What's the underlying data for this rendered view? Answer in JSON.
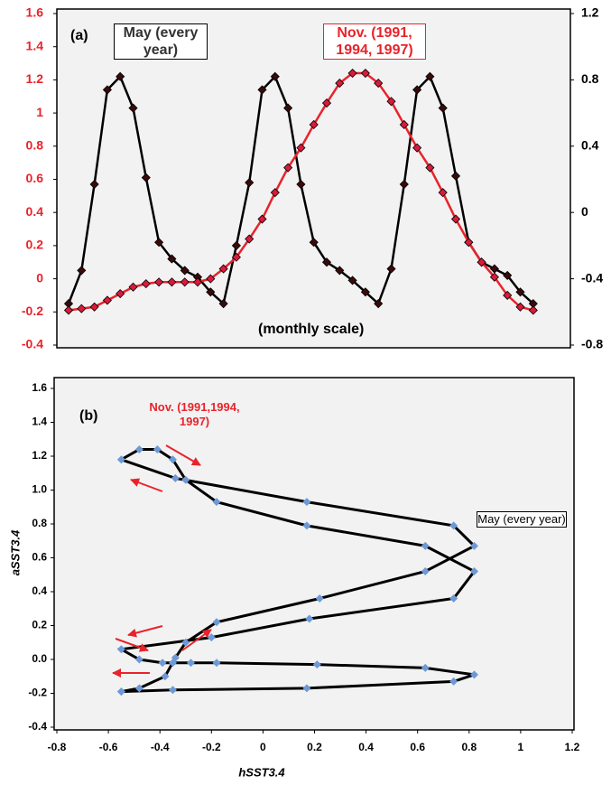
{
  "chart_data": [
    {
      "type": "line",
      "annotations": [
        "(a)",
        "May (every year)",
        "Nov. (1991, 1994, 1997)",
        "(monthly scale)"
      ],
      "ylim": [
        -0.4,
        1.6
      ],
      "yticks": [
        1.6,
        1.4,
        1.2,
        1,
        0.8,
        0.6,
        0.4,
        0.2,
        0,
        -0.2,
        -0.4
      ],
      "y2lim": [
        -0.8,
        1.2
      ],
      "y2ticks": [
        1.2,
        0.8,
        0.4,
        0,
        -0.4,
        -0.8
      ],
      "series": [
        {
          "color": "#000000",
          "marker_color": "#3a0a0a",
          "axis": "y2",
          "values": [
            -0.55,
            -0.35,
            0.17,
            0.74,
            0.82,
            0.63,
            0.21,
            -0.18,
            -0.28,
            -0.35,
            -0.39,
            -0.48,
            -0.55,
            -0.2,
            0.18,
            0.74,
            0.82,
            0.63,
            0.17,
            -0.18,
            -0.3,
            -0.35,
            -0.41,
            -0.48,
            -0.55,
            -0.34,
            0.17,
            0.74,
            0.82,
            0.63,
            0.22,
            -0.18,
            -0.3,
            -0.34,
            -0.38,
            -0.48,
            -0.55
          ]
        },
        {
          "color": "#e8232b",
          "marker_color": "#d81b3c",
          "axis": "y",
          "values": [
            -0.19,
            -0.18,
            -0.17,
            -0.13,
            -0.09,
            -0.05,
            -0.03,
            -0.02,
            -0.02,
            -0.02,
            -0.02,
            0.0,
            0.06,
            0.13,
            0.24,
            0.36,
            0.52,
            0.67,
            0.79,
            0.93,
            1.06,
            1.18,
            1.24,
            1.24,
            1.18,
            1.07,
            0.93,
            0.79,
            0.67,
            0.52,
            0.36,
            0.22,
            0.1,
            0.01,
            -0.1,
            -0.17,
            -0.19
          ]
        }
      ]
    },
    {
      "type": "scatter",
      "x_label": "hSST3.4",
      "y_label": "aSST3.4",
      "annotations": [
        "(b)",
        "Nov. (1991,1994, 1997)",
        "May (every year)"
      ],
      "xlim": [
        -0.8,
        1.2
      ],
      "xticks": [
        -0.8,
        -0.6,
        -0.4,
        -0.2,
        0,
        0.2,
        0.4,
        0.6,
        0.8,
        1,
        1.2
      ],
      "ylim": [
        -0.4,
        1.6
      ],
      "yticks": [
        1.6,
        1.4,
        1.2,
        {
          "value": 1,
          "label": "1.0"
        },
        0.8,
        0.6,
        0.4,
        0.2,
        {
          "value": 0,
          "label": "0.0"
        },
        -0.2,
        -0.4
      ],
      "line_color": "#000000",
      "marker_color": "#6d9ad6",
      "x": [
        -0.55,
        -0.35,
        0.17,
        0.74,
        0.82,
        0.63,
        0.21,
        -0.18,
        -0.28,
        -0.35,
        -0.39,
        -0.48,
        -0.55,
        -0.2,
        0.18,
        0.74,
        0.82,
        0.63,
        0.17,
        -0.18,
        -0.3,
        -0.35,
        -0.41,
        -0.48,
        -0.55,
        -0.34,
        0.17,
        0.74,
        0.82,
        0.63,
        0.22,
        -0.18,
        -0.3,
        -0.34,
        -0.38,
        -0.48,
        -0.55
      ],
      "values": [
        -0.19,
        -0.18,
        -0.17,
        -0.13,
        -0.09,
        -0.05,
        -0.03,
        -0.02,
        -0.02,
        -0.02,
        -0.02,
        0.0,
        0.06,
        0.13,
        0.24,
        0.36,
        0.52,
        0.67,
        0.79,
        0.93,
        1.06,
        1.18,
        1.24,
        1.24,
        1.18,
        1.07,
        0.93,
        0.79,
        0.67,
        0.52,
        0.36,
        0.22,
        0.1,
        0.01,
        -0.1,
        -0.17,
        -0.19
      ]
    }
  ]
}
